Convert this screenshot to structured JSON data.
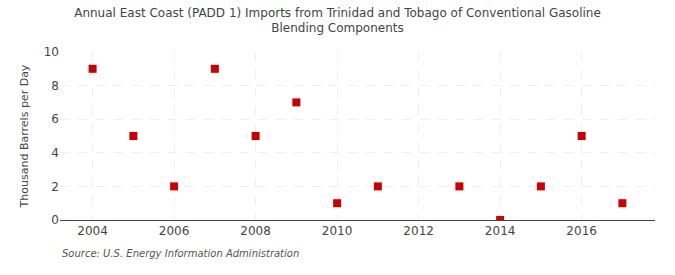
{
  "chart_data": {
    "type": "scatter",
    "title": "Annual East Coast (PADD 1) Imports from Trinidad and Tobago of Conventional Gasoline\nBlending Components",
    "ylabel": "Thousand Barrels per Day",
    "annotations": [
      "Source: U.S. Energy Information Administration"
    ],
    "x": [
      2004,
      2005,
      2006,
      2007,
      2008,
      2009,
      2010,
      2011,
      2013,
      2014,
      2015,
      2016,
      2017
    ],
    "values": [
      9,
      5,
      2,
      9,
      5,
      7,
      1,
      2,
      2,
      0,
      2,
      5,
      1
    ],
    "xlim": [
      2003.2,
      2017.8
    ],
    "ylim": [
      0,
      10
    ],
    "xticks": [
      2004,
      2006,
      2008,
      2010,
      2012,
      2014,
      2016
    ],
    "yticks": [
      0,
      2,
      4,
      6,
      8,
      10
    ],
    "color": "#cc0000",
    "marker": "square",
    "grid": true
  }
}
